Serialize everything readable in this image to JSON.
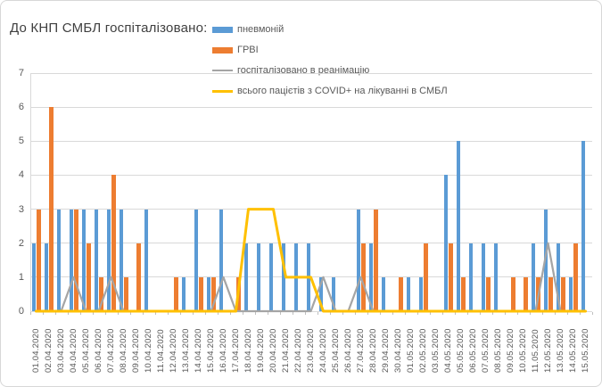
{
  "title": "До КНП СМБЛ госпіталізовано:",
  "chart_data": {
    "type": "bar",
    "title": "До КНП СМБЛ госпіталізовано:",
    "xlabel": "",
    "ylabel": "",
    "ylim": [
      0,
      7
    ],
    "yticks": [
      0,
      1,
      2,
      3,
      4,
      5,
      6,
      7
    ],
    "grid": true,
    "legend_position": "top",
    "categories": [
      "01.04.2020",
      "02.04.2020",
      "03.04.2020",
      "04.04.2020",
      "05.04.2020",
      "06.04.2020",
      "07.04.2020",
      "08.04.2020",
      "09.04.2020",
      "10.04.2020",
      "11.04.2020",
      "12.04.2020",
      "13.04.2020",
      "14.04.2020",
      "15.04.2020",
      "16.04.2020",
      "17.04.2020",
      "18.04.2020",
      "19.04.2020",
      "20.04.2020",
      "21.04.2020",
      "22.04.2020",
      "23.04.2020",
      "24.04.2020",
      "25.04.2020",
      "26.04.2020",
      "27.04.2020",
      "28.04.2020",
      "29.04.2020",
      "30.04.2020",
      "01.05.2020",
      "02.05.2020",
      "03.05.2020",
      "04.05.2020",
      "05.05.2020",
      "06.05.2020",
      "07.05.2020",
      "08.05.2020",
      "09.05.2020",
      "10.05.2020",
      "11.05.2020",
      "12.05.2020",
      "13.05.2020",
      "14.05.2020",
      "15.05.2020"
    ],
    "series": [
      {
        "key": "pneumonia",
        "name": "пневмоній",
        "type": "bar",
        "color": "#5B9BD5",
        "values": [
          2,
          2,
          3,
          3,
          3,
          3,
          3,
          3,
          0,
          3,
          0,
          0,
          1,
          3,
          1,
          3,
          0,
          2,
          2,
          2,
          2,
          2,
          2,
          1,
          1,
          0,
          3,
          2,
          1,
          0,
          1,
          1,
          0,
          4,
          5,
          2,
          2,
          2,
          0,
          0,
          2,
          3,
          2,
          1,
          5
        ]
      },
      {
        "key": "grvi",
        "name": "ГРВІ",
        "type": "bar",
        "color": "#ED7D31",
        "values": [
          3,
          6,
          0,
          3,
          2,
          1,
          4,
          1,
          2,
          0,
          0,
          1,
          0,
          1,
          1,
          0,
          1,
          0,
          0,
          0,
          0,
          0,
          0,
          0,
          0,
          0,
          2,
          3,
          0,
          1,
          0,
          2,
          0,
          2,
          1,
          0,
          1,
          0,
          1,
          1,
          1,
          1,
          1,
          2,
          0
        ]
      },
      {
        "key": "icu",
        "name": "госпіталізовано в реанімацію",
        "type": "line",
        "color": "#A5A5A5",
        "values": [
          0,
          0,
          0,
          1,
          0,
          0,
          1,
          0,
          0,
          0,
          0,
          0,
          0,
          0,
          0,
          1,
          0,
          0,
          0,
          0,
          0,
          0,
          0,
          1,
          0,
          0,
          1,
          0,
          0,
          0,
          0,
          0,
          0,
          0,
          0,
          0,
          0,
          0,
          0,
          0,
          0,
          2,
          0,
          0,
          0
        ]
      },
      {
        "key": "covid-total",
        "name": "всього пацієтів з COVID+ на лікуванні в СМБЛ",
        "type": "line",
        "color": "#FFC000",
        "values": [
          0,
          0,
          0,
          0,
          0,
          0,
          0,
          0,
          0,
          0,
          0,
          0,
          0,
          0,
          0,
          0,
          0,
          3,
          3,
          3,
          1,
          1,
          1,
          0,
          0,
          0,
          0,
          0,
          0,
          0,
          0,
          0,
          0,
          0,
          0,
          0,
          0,
          0,
          0,
          0,
          0,
          0,
          0,
          0,
          0
        ]
      }
    ]
  }
}
